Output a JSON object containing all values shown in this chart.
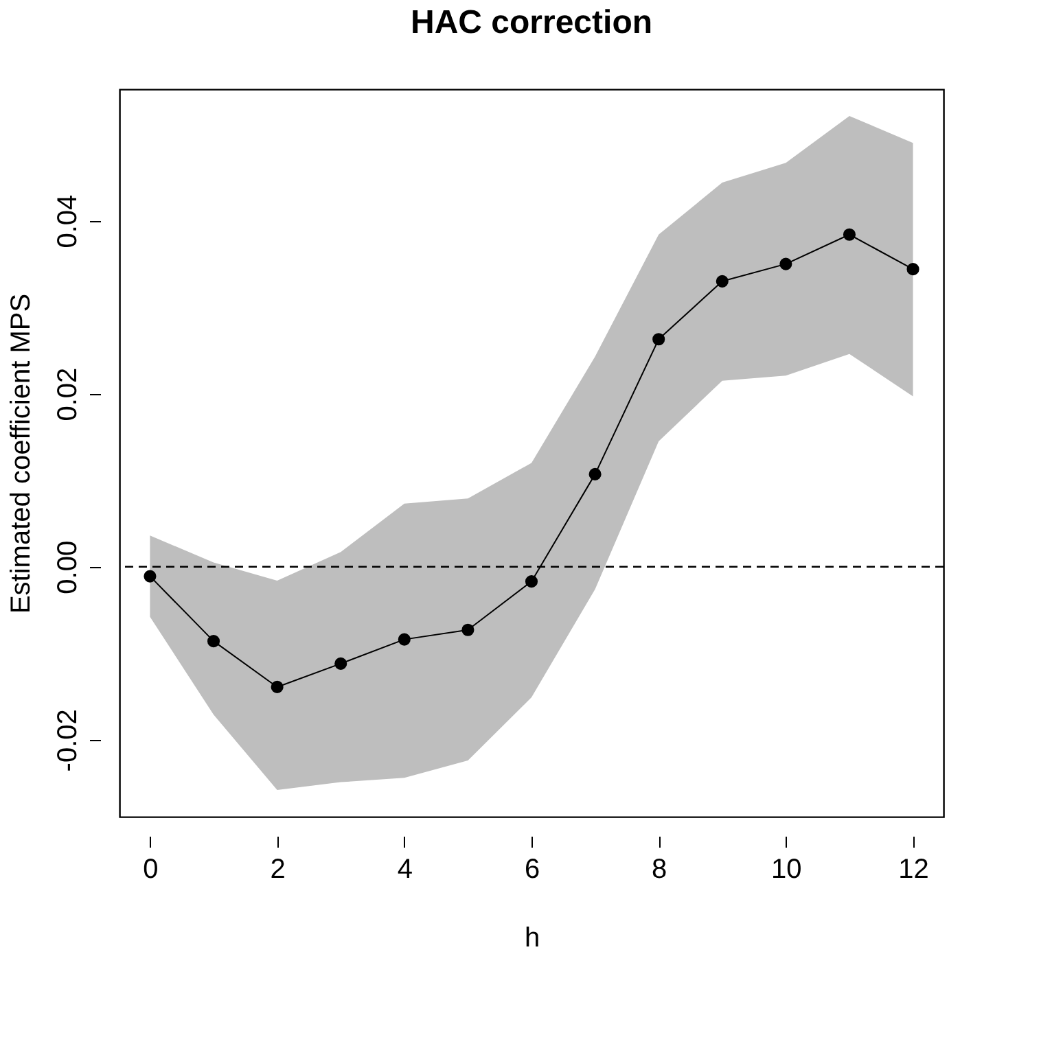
{
  "chart_data": {
    "type": "line",
    "title": "HAC correction",
    "xlabel": "h",
    "ylabel": "Estimated coefficient MPS",
    "x": [
      0,
      1,
      2,
      3,
      4,
      5,
      6,
      7,
      8,
      9,
      10,
      11,
      12
    ],
    "series": [
      {
        "color": "#000000",
        "values": [
          -0.0011,
          -0.0086,
          -0.0139,
          -0.0112,
          -0.0084,
          -0.0073,
          -0.0017,
          0.0107,
          0.0263,
          0.033,
          0.035,
          0.0384,
          0.0344
        ],
        "lower": [
          -0.0058,
          -0.0171,
          -0.0258,
          -0.0249,
          -0.0244,
          -0.0224,
          -0.0151,
          -0.0026,
          0.0145,
          0.0215,
          0.0221,
          0.0246,
          0.0197
        ],
        "upper": [
          0.0036,
          0.0005,
          -0.0016,
          0.0017,
          0.0073,
          0.0079,
          0.012,
          0.0243,
          0.0384,
          0.0444,
          0.0467,
          0.0521,
          0.049
        ]
      }
    ],
    "xlim": [
      -0.48,
      12.48
    ],
    "xticks": [
      0,
      2,
      4,
      6,
      8,
      10,
      12
    ],
    "ylim": [
      -0.0289,
      0.0552
    ],
    "yticks": [
      {
        "value": -0.02,
        "label": "-0.02"
      },
      {
        "value": 0,
        "label": "0.00"
      },
      {
        "value": 0.02,
        "label": "0.02"
      },
      {
        "value": 0.04,
        "label": "0.04"
      }
    ],
    "ref_lines": [
      {
        "axis": "y",
        "value": 0,
        "line_style": "dashed",
        "color": "#000000"
      }
    ],
    "marker": "circle",
    "line_style": "solid"
  }
}
